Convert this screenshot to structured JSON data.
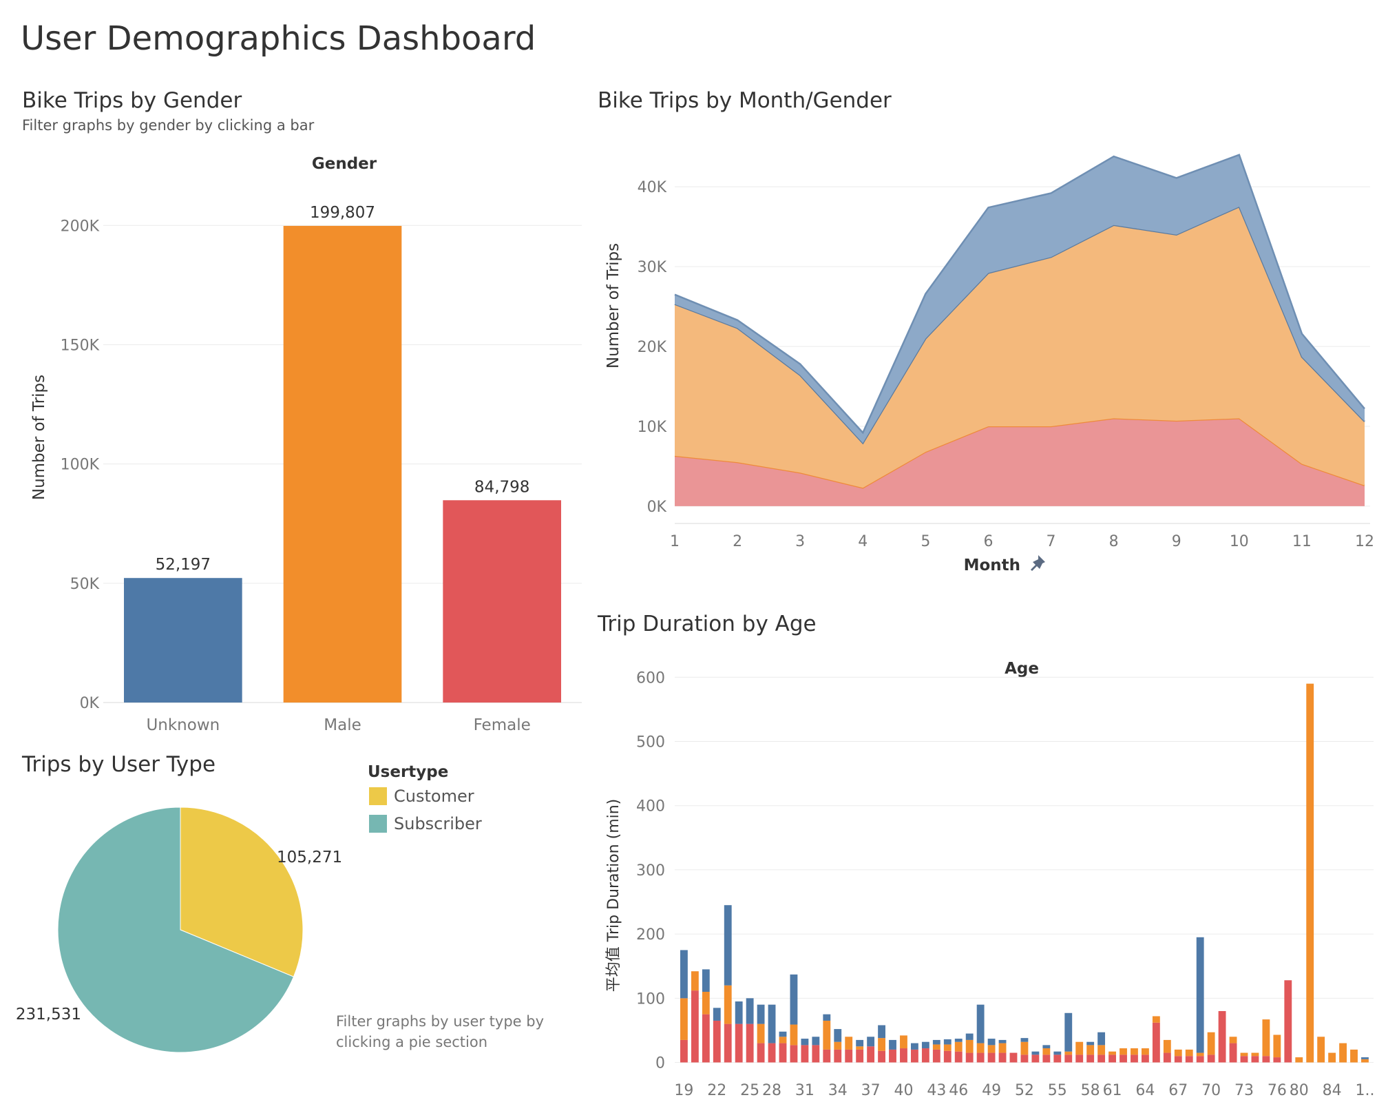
{
  "dashboard": {
    "title": "User Demographics Dashboard"
  },
  "colors": {
    "unknown": "#4e79a7",
    "male": "#f28e2b",
    "female": "#e15759",
    "customer": "#edc948",
    "subscriber": "#76b7b2"
  },
  "gender_panel": {
    "title": "Bike Trips by Gender",
    "subtitle": "Filter graphs by gender by clicking a bar"
  },
  "month_panel": {
    "title": "Bike Trips by Month/Gender",
    "pin_icon": "pin-icon"
  },
  "usertype_panel": {
    "title": "Trips by User Type",
    "note": "Filter graphs by user type by clicking a pie section"
  },
  "age_panel": {
    "title": "Trip Duration by Age"
  },
  "chart_data": [
    {
      "id": "gender",
      "type": "bar",
      "header": "Gender",
      "ylabel": "Number of Trips",
      "categories": [
        "Unknown",
        "Male",
        "Female"
      ],
      "values": [
        52197,
        199807,
        84798
      ],
      "value_labels": [
        "52,197",
        "199,807",
        "84,798"
      ],
      "ylim": [
        0,
        220000
      ],
      "ticks": [
        0,
        50000,
        100000,
        150000,
        200000
      ],
      "tick_labels": [
        "0K",
        "50K",
        "100K",
        "150K",
        "200K"
      ],
      "grid": true
    },
    {
      "id": "month",
      "type": "area",
      "stacked": true,
      "xlabel": "Month",
      "ylabel": "Number of Trips",
      "x": [
        1,
        2,
        3,
        4,
        5,
        6,
        7,
        8,
        9,
        10,
        11,
        12
      ],
      "ylim": [
        -1300,
        47000
      ],
      "ticks": [
        0,
        10000,
        20000,
        30000,
        40000
      ],
      "tick_labels": [
        "0K",
        "10K",
        "20K",
        "30K",
        "40K"
      ],
      "series": [
        {
          "key": "female",
          "values": [
            6300,
            5500,
            4200,
            2300,
            6800,
            10000,
            10000,
            11000,
            10700,
            11000,
            5300,
            2600
          ]
        },
        {
          "key": "male",
          "values": [
            19000,
            16800,
            12200,
            5600,
            14200,
            19200,
            21200,
            24200,
            23300,
            26500,
            13400,
            8000
          ]
        },
        {
          "key": "unknown",
          "values": [
            1200,
            1000,
            1400,
            1300,
            5600,
            8200,
            8000,
            8600,
            7100,
            6500,
            2900,
            1600
          ]
        }
      ],
      "grid": true
    },
    {
      "id": "usertype",
      "type": "pie",
      "legend_title": "Usertype",
      "legend_position": "right",
      "labels": [
        "Customer",
        "Subscriber"
      ],
      "values": [
        105271,
        231531
      ],
      "value_labels": [
        "105,271",
        "231,531"
      ]
    },
    {
      "id": "age",
      "type": "bar",
      "stacked": true,
      "header": "Age",
      "ylabel": "平均值 Trip Duration (min)",
      "ylim": [
        -8,
        625
      ],
      "ticks": [
        0,
        100,
        200,
        300,
        400,
        500,
        600
      ],
      "tick_labels": [
        "0",
        "100",
        "200",
        "300",
        "400",
        "500",
        "600"
      ],
      "x_tick_labels": [
        "19",
        "22",
        "25",
        "28",
        "31",
        "34",
        "37",
        "40",
        "43",
        "46",
        "49",
        "52",
        "55",
        "58",
        "61",
        "64",
        "67",
        "70",
        "73",
        "76",
        "80",
        "84",
        "1.."
      ],
      "series": [
        {
          "key": "female",
          "values": [
            35,
            112,
            75,
            65,
            60,
            60,
            60,
            30,
            30,
            30,
            27,
            27,
            27,
            20,
            20,
            20,
            20,
            25,
            18,
            20,
            22,
            20,
            22,
            20,
            18,
            17,
            15,
            15,
            15,
            15,
            15,
            12,
            12,
            12,
            12,
            12,
            12,
            12,
            12,
            12,
            12,
            12,
            12,
            62,
            15,
            10,
            10,
            10,
            12,
            80,
            30,
            10,
            10,
            10,
            8,
            128,
            0,
            0,
            0,
            0,
            0,
            0,
            0
          ]
        },
        {
          "key": "male",
          "values": [
            65,
            30,
            35,
            0,
            60,
            0,
            0,
            30,
            0,
            10,
            32,
            0,
            0,
            45,
            12,
            20,
            5,
            0,
            20,
            0,
            20,
            0,
            0,
            8,
            10,
            15,
            20,
            15,
            12,
            15,
            0,
            20,
            0,
            10,
            0,
            5,
            20,
            15,
            15,
            5,
            10,
            10,
            10,
            10,
            20,
            10,
            10,
            5,
            35,
            0,
            10,
            5,
            5,
            57,
            35,
            0,
            8,
            590,
            40,
            15,
            30,
            20,
            5
          ]
        },
        {
          "key": "unknown",
          "values": [
            75,
            0,
            35,
            20,
            125,
            35,
            40,
            30,
            60,
            8,
            78,
            10,
            13,
            10,
            20,
            0,
            10,
            15,
            20,
            15,
            0,
            10,
            10,
            7,
            8,
            5,
            10,
            60,
            10,
            5,
            0,
            6,
            5,
            5,
            5,
            60,
            0,
            5,
            20,
            0,
            0,
            0,
            0,
            0,
            0,
            0,
            0,
            180,
            0,
            0,
            0,
            0,
            0,
            0,
            0,
            0,
            0,
            0,
            0,
            0,
            0,
            0,
            3
          ]
        }
      ],
      "grid": true
    }
  ]
}
